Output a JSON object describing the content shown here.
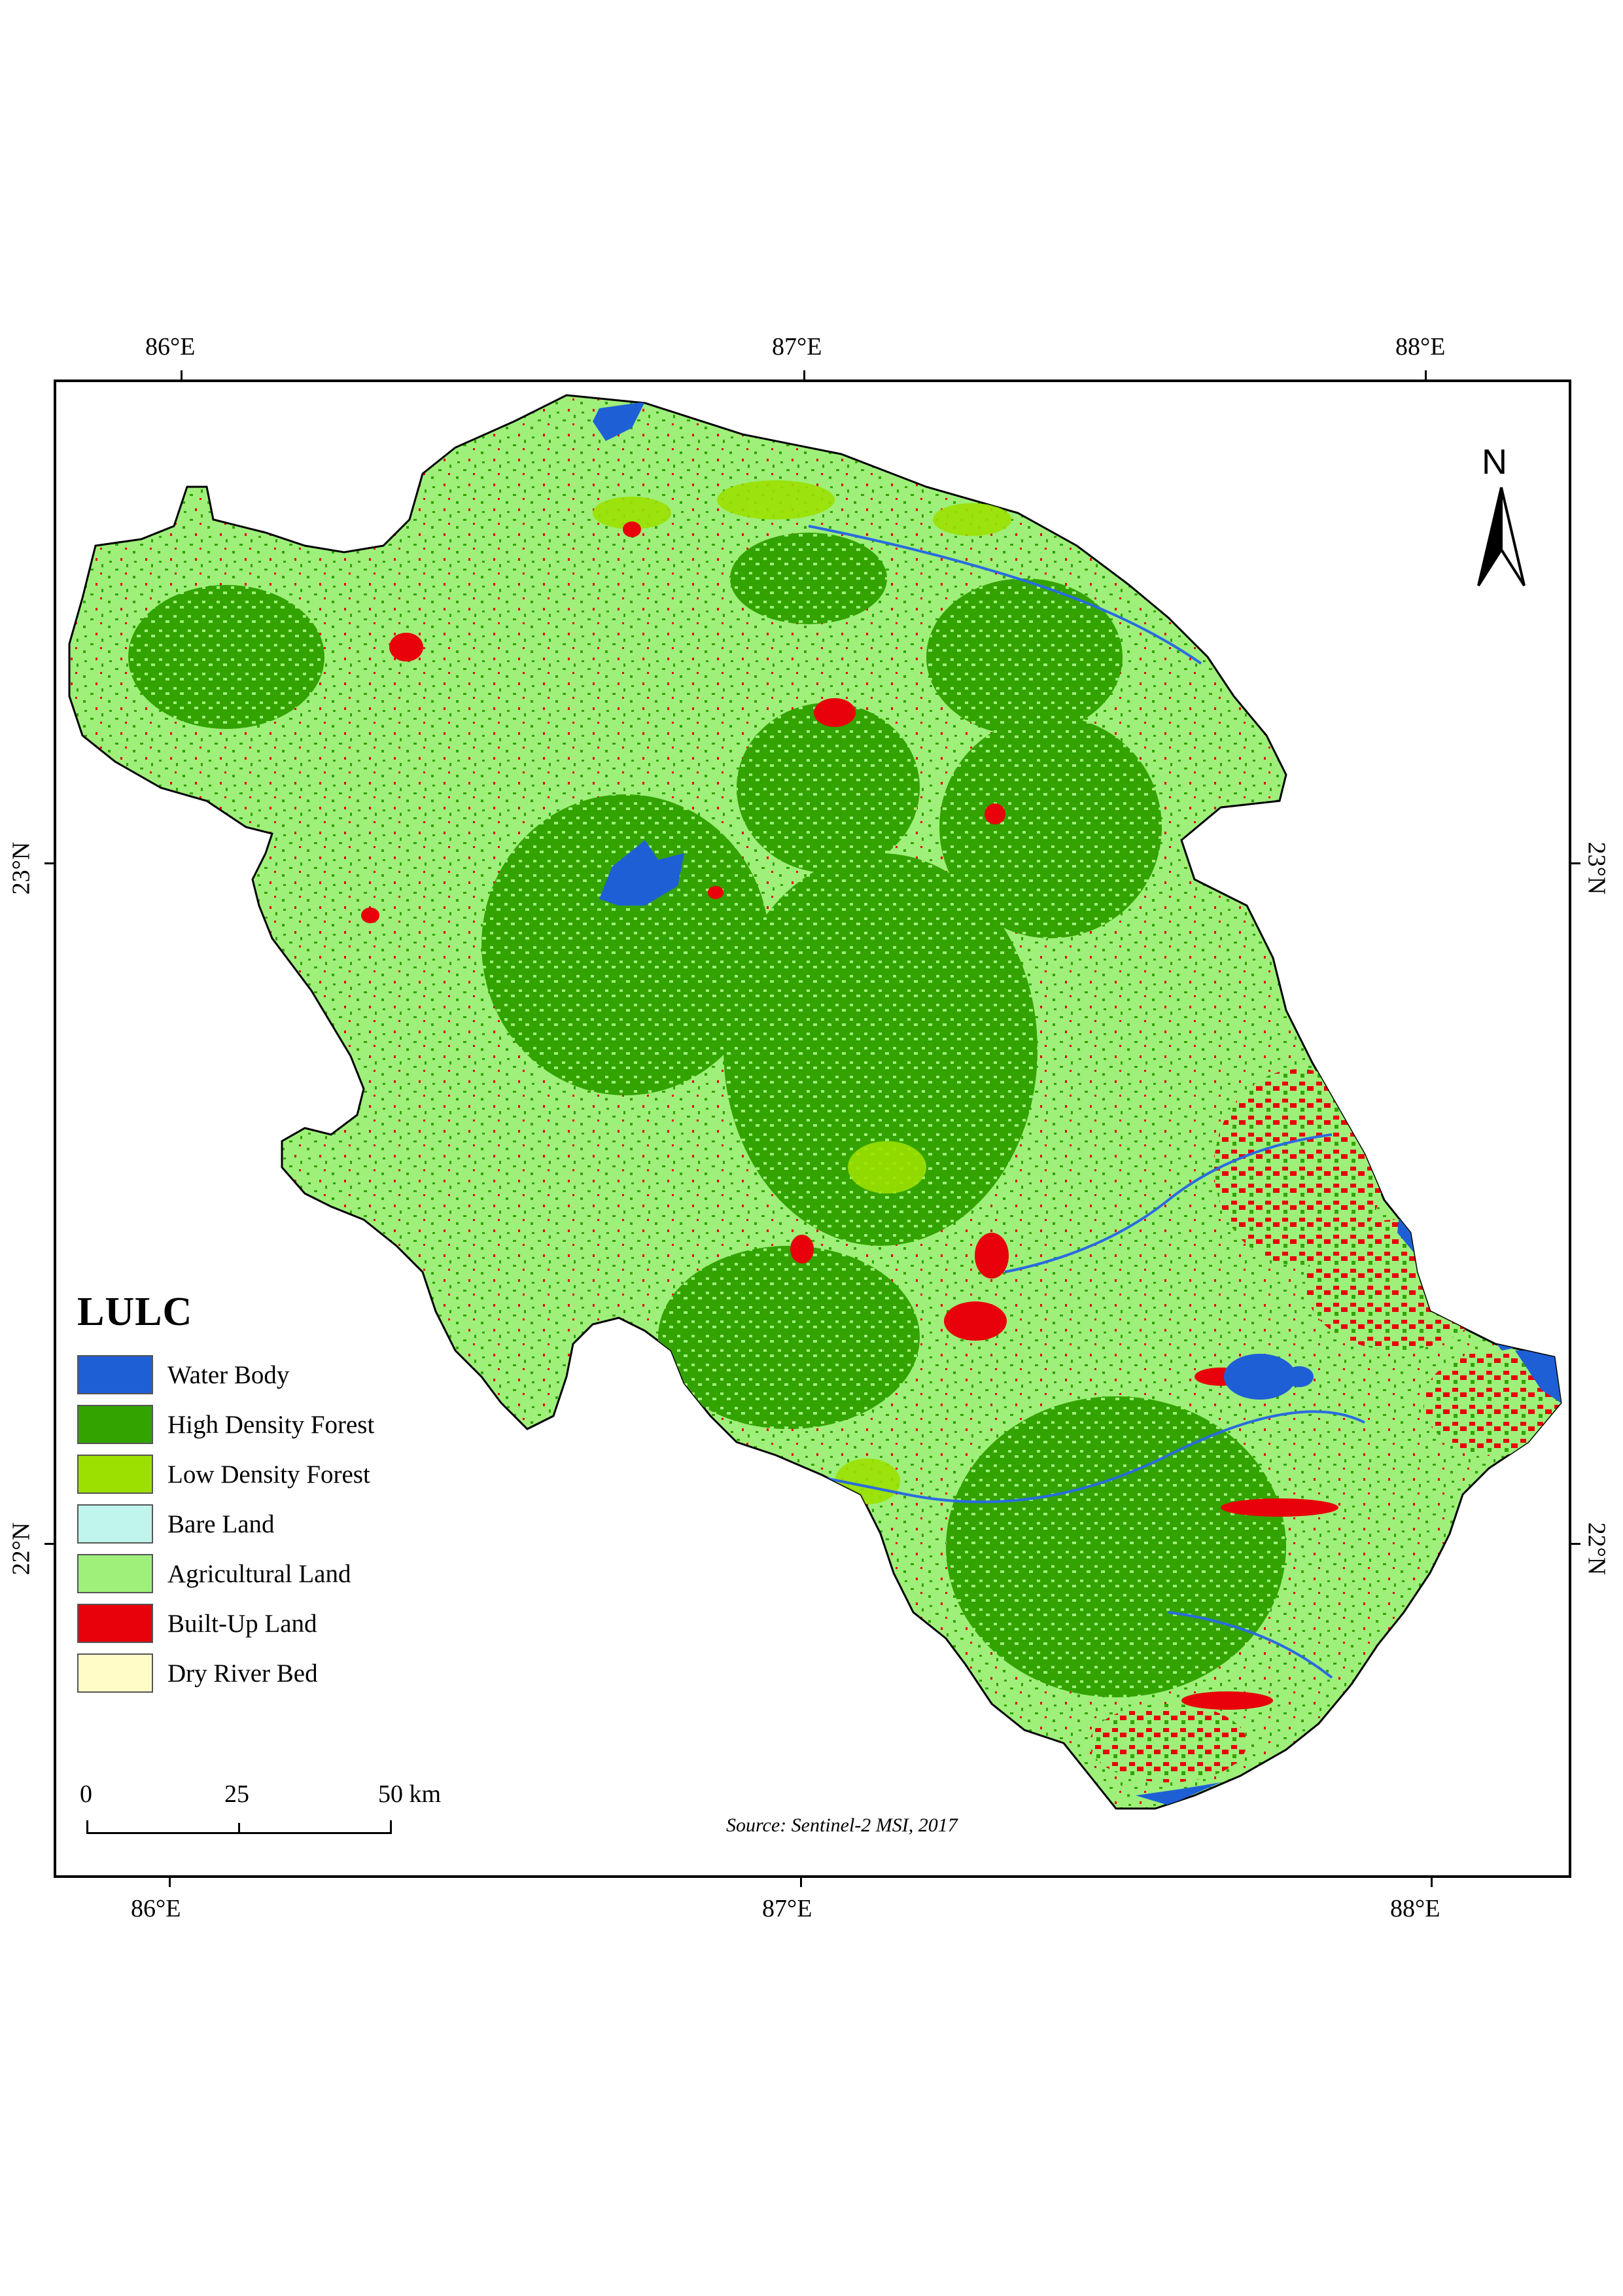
{
  "map": {
    "top_coordinates": [
      "86°E",
      "87°E",
      "88°E"
    ],
    "bottom_coordinates": [
      "86°E",
      "87°E",
      "88°E"
    ],
    "left_coordinates": [
      "23°N",
      "22°N"
    ],
    "right_coordinates": [
      "23°N",
      "22°N"
    ],
    "north_label": "N",
    "source": "Source: Sentinel-2 MSI, 2017"
  },
  "legend": {
    "title": "LULC",
    "items": [
      {
        "label": "Water Body",
        "color": "#1f5fd6"
      },
      {
        "label": "High Density Forest",
        "color": "#33a300"
      },
      {
        "label": "Low Density Forest",
        "color": "#9be000"
      },
      {
        "label": "Bare Land",
        "color": "#bff5ec"
      },
      {
        "label": "Agricultural Land",
        "color": "#9ef07a"
      },
      {
        "label": "Built-Up Land",
        "color": "#e8000a"
      },
      {
        "label": "Dry River Bed",
        "color": "#fffcc8"
      }
    ]
  },
  "scale_bar": {
    "labels": [
      "0",
      "25",
      "50 km"
    ]
  }
}
